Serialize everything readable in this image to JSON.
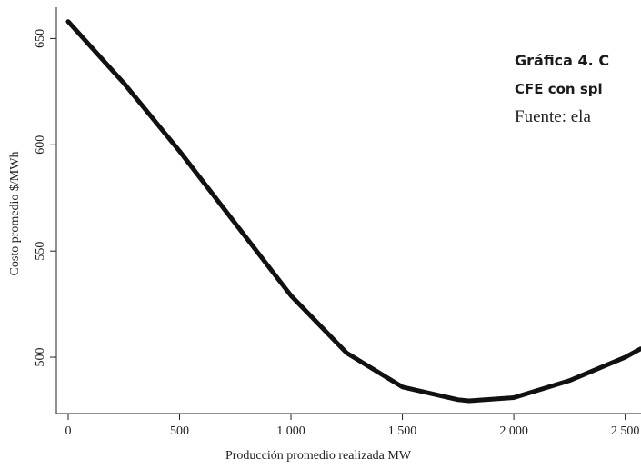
{
  "chart_data": {
    "type": "line",
    "x_label": "Producción promedio realizada MW",
    "y_label": "Costo promedio $/MWh",
    "annotations": [
      "Gráfica 4. C",
      "CFE con spl",
      "Fuente: ela"
    ],
    "x": [
      0,
      250,
      500,
      750,
      1000,
      1250,
      1500,
      1750,
      1800,
      2000,
      2250,
      2500,
      2570
    ],
    "series": [
      {
        "color": "#111111",
        "values": [
          658,
          629,
          597,
          563,
          529,
          502,
          486,
          480,
          479.5,
          481,
          489,
          500,
          504
        ]
      }
    ],
    "xlim": [
      -53,
      2571
    ],
    "ylim": [
      473.5,
      666
    ],
    "xticks": [
      0,
      500,
      {
        "value": 1000,
        "label": "1 000"
      },
      {
        "value": 1500,
        "label": "1 500"
      },
      {
        "value": 2000,
        "label": "2 000"
      },
      {
        "value": 2500,
        "label": "2 500"
      }
    ],
    "yticks": [
      500,
      550,
      600,
      650
    ]
  }
}
